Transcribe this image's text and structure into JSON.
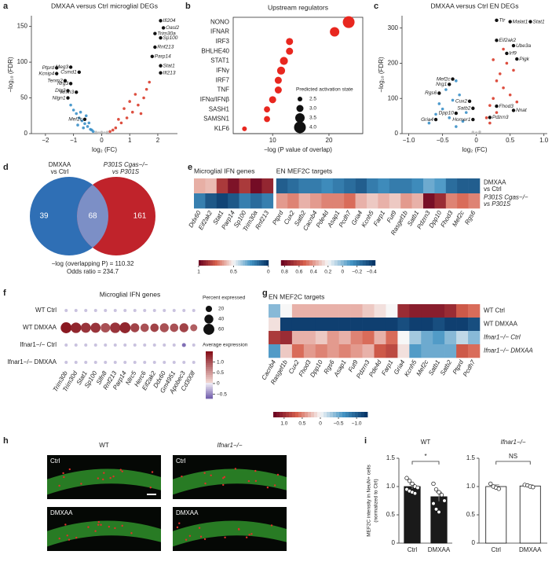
{
  "chart_data": [
    {
      "type": "volcano",
      "panel": "a",
      "title": "DMXAA versus Ctrl microglial DEGs",
      "xlabel": "log₂ (FC)",
      "ylabel": "−log₁₀ (FDR)",
      "xlim": [
        -2.5,
        2.7
      ],
      "xticks": [
        {
          "value": -2,
          "label": "−2"
        },
        {
          "value": -1,
          "label": "−1"
        },
        0,
        1,
        2
      ],
      "ylim": [
        0,
        165
      ],
      "yticks": [
        0,
        50,
        100,
        150
      ],
      "series": [
        {
          "color": "#2f8ac4",
          "x": [
            -0.3,
            -0.4,
            -0.5,
            -0.6,
            -0.7,
            -0.8,
            -0.9,
            -1.0,
            -0.55,
            -0.65,
            -0.75,
            -1.1,
            -0.45,
            -0.35,
            -0.85
          ],
          "y": [
            3,
            6,
            10,
            14,
            18,
            22,
            28,
            33,
            25,
            8,
            30,
            40,
            15,
            5,
            12
          ]
        },
        {
          "color": "#d7301f",
          "x": [
            0.3,
            0.5,
            0.7,
            0.9,
            1.1,
            1.3,
            1.5,
            0.6,
            0.8,
            1.0,
            1.2,
            1.6,
            0.4,
            1.4,
            1.7
          ],
          "y": [
            3,
            8,
            15,
            22,
            30,
            40,
            50,
            20,
            35,
            45,
            55,
            62,
            5,
            28,
            72
          ]
        },
        {
          "color": "#bbbbbb",
          "x": [
            -0.1,
            0.1,
            0,
            -0.2,
            0.2
          ],
          "y": [
            1,
            1,
            2,
            2,
            2
          ]
        }
      ],
      "genes": {
        "color": "#111111",
        "names": [
          "Ifi204",
          "Oasl2",
          "Trim30a",
          "Sp100",
          "Rnf213",
          "Parp14",
          "Stat1",
          "Ifi213",
          "Ptprd",
          "Meg3",
          "Kcnip4",
          "Csmd1",
          "Tenm2",
          "Nrg3",
          "Dlg2",
          "Nrxn3",
          "Nlgn1",
          "Mef2c"
        ],
        "x": [
          2.1,
          2.2,
          1.9,
          2.1,
          1.9,
          1.8,
          2.1,
          2.1,
          -1.6,
          -1.1,
          -1.6,
          -0.8,
          -1.3,
          -1.1,
          -1.2,
          -0.9,
          -1.2,
          -0.6
        ],
        "y": [
          158,
          148,
          140,
          134,
          121,
          108,
          95,
          85,
          92,
          93,
          84,
          86,
          74,
          70,
          60,
          58,
          50,
          20
        ]
      }
    },
    {
      "type": "dot",
      "panel": "b",
      "title": "Upstream regulators",
      "xlabel": "−log (P value of overlap)",
      "color": "#e8271f",
      "categories": [
        "NONO",
        "IFNAR",
        "IRF3",
        "BHLHE40",
        "STAT1",
        "IFNγ",
        "IRF7",
        "TNF",
        "IFNα/IFNβ",
        "SASH1",
        "SAMSN1",
        "KLF6"
      ],
      "values": [
        23.5,
        21,
        13,
        13,
        12,
        11.5,
        11,
        11,
        10,
        9,
        9,
        5
      ],
      "sizes": [
        4.0,
        3.5,
        3.0,
        3.0,
        3.2,
        3.2,
        3.0,
        3.0,
        3.0,
        2.8,
        2.8,
        2.5
      ],
      "xlim": [
        3,
        26
      ],
      "xticks": [
        10,
        20
      ],
      "legend": {
        "title": "Predicted activation state",
        "sizes": [
          2.5,
          {
            "value": 3.0,
            "label": "3.0"
          },
          3.5,
          {
            "value": 4.0,
            "label": "4.0"
          }
        ]
      }
    },
    {
      "type": "volcano",
      "panel": "c",
      "title": "DMXAA versus Ctrl EN DEGs",
      "xlabel": "log₂ (FC)",
      "ylabel": "−log₁₀ (FDR)",
      "xlim": [
        -1.1,
        1.05
      ],
      "xticks": [
        {
          "value": -1.0,
          "label": "−1.0"
        },
        {
          "value": -0.5,
          "label": "−0.5"
        },
        0,
        0.5,
        {
          "value": 1.0,
          "label": "1.0"
        }
      ],
      "ylim": [
        0,
        335
      ],
      "yticks": [
        0,
        100,
        200,
        300
      ],
      "series": [
        {
          "color": "#2f8ac4",
          "x": [
            -0.3,
            -0.4,
            -0.5,
            -0.35,
            -0.6,
            -0.25,
            -0.45,
            -0.2,
            -0.55,
            -0.15,
            -0.7,
            -0.3
          ],
          "y": [
            20,
            45,
            70,
            95,
            55,
            110,
            125,
            35,
            85,
            60,
            30,
            150
          ]
        },
        {
          "color": "#d7301f",
          "x": [
            0.2,
            0.3,
            0.25,
            0.4,
            0.35,
            0.45,
            0.2,
            0.5,
            0.3,
            0.6,
            0.15,
            0.4,
            0.55,
            0.25
          ],
          "y": [
            30,
            60,
            100,
            130,
            170,
            200,
            80,
            110,
            150,
            90,
            45,
            240,
            180,
            210
          ]
        },
        {
          "color": "#bbbbbb",
          "x": [
            0,
            0.05,
            -0.05
          ],
          "y": [
            2,
            5,
            4
          ]
        }
      ],
      "genes": {
        "color": "#111111",
        "names": [
          "Ttr",
          "Malat1",
          "Stat1",
          "Eif2ak2",
          "Ube3a",
          "Irf9",
          "Pigk",
          "Nrg1",
          "Mef2c",
          "Rgs6",
          "Cux2",
          "Satb2",
          "Dpp10",
          "Gria4",
          "Homer1",
          "Pdzrn3",
          "Fhod3",
          "Nnat"
        ],
        "x": [
          0.3,
          0.5,
          0.8,
          0.3,
          0.55,
          0.45,
          0.6,
          -0.4,
          -0.35,
          -0.55,
          -0.1,
          -0.05,
          -0.3,
          -0.6,
          -0.05,
          0.2,
          0.3,
          0.55
        ],
        "y": [
          322,
          318,
          318,
          265,
          250,
          228,
          212,
          140,
          155,
          115,
          92,
          72,
          58,
          40,
          40,
          46,
          78,
          66
        ]
      }
    },
    {
      "type": "venn",
      "panel": "d",
      "colors": [
        "#2f6fb5",
        "#c0232b",
        "#7c8fc6"
      ],
      "left_label": [
        "DMXAA",
        "vs Ctrl"
      ],
      "right_label": [
        "P301S Cgas−/−",
        "vs P301S"
      ],
      "counts": [
        39,
        68,
        161
      ],
      "stats": [
        "−log (overlapping P) = 110.32",
        "Odds ratio = 234.7"
      ]
    },
    {
      "type": "heatmap",
      "panel": "e",
      "rows": [
        [
          "DMXAA",
          "vs Ctrl"
        ],
        [
          "P301S Cgas−/−",
          "vs P301S"
        ]
      ],
      "groups": [
        {
          "title": "Microglial IFN genes",
          "columns": [
            "Ddx60",
            "Eif2ak2",
            "Stat1",
            "Parp14",
            "Sp100",
            "Trim30a",
            "Rnf213"
          ],
          "values": [
            [
              0.62,
              0.6,
              0.85,
              0.95,
              0.85,
              0.97,
              0.9
            ],
            [
              0.2,
              0.1,
              0.05,
              0.1,
              0.2,
              0.15,
              0.2
            ]
          ],
          "lim": [
            0,
            1
          ],
          "ticks": [
            1,
            0.5,
            0
          ]
        },
        {
          "title": "EN MEF2C targets",
          "columns": [
            "Ptprd",
            "Cux2",
            "Satb2",
            "Cacnb4",
            "Pde4d",
            "Asap1",
            "Pcdh7",
            "Gria4",
            "Kcnh5",
            "Farp1",
            "Fut9",
            "Rasgef1b",
            "Satb1",
            "Pdzrn3",
            "Dpp10",
            "Fhod3",
            "Mef2c",
            "Rgs6"
          ],
          "values": [
            [
              -0.3,
              -0.25,
              -0.2,
              -0.2,
              -0.15,
              -0.2,
              -0.25,
              -0.3,
              -0.2,
              -0.15,
              -0.2,
              -0.2,
              -0.15,
              -0.05,
              -0.1,
              -0.25,
              -0.3,
              -0.3
            ],
            [
              0.4,
              0.45,
              0.35,
              0.4,
              0.45,
              0.45,
              0.5,
              0.35,
              0.3,
              0.35,
              0.3,
              0.4,
              0.35,
              0.8,
              0.7,
              0.45,
              0.5,
              0.45
            ]
          ],
          "lim": [
            -0.45,
            0.85
          ],
          "ticks": [
            0.8,
            0.6,
            0.4,
            0.2,
            0,
            {
              "value": -0.2,
              "label": "−0.2"
            },
            {
              "value": -0.4,
              "label": "−0.4"
            }
          ]
        }
      ]
    },
    {
      "type": "dotplot",
      "panel": "f",
      "title": "Microglial IFN genes",
      "rows": [
        "WT Ctrl",
        "WT DMXAA",
        "Ifnar1−/− Ctrl",
        "Ifnar1−/− DMXAA"
      ],
      "columns": [
        "Trim30b",
        "Trim30d",
        "Stat1",
        "Sp100",
        "Slfn8",
        "Rnf213",
        "Parp14",
        "Nlrc5",
        "Herc6",
        "Eif2ak2",
        "Ddx60",
        "Gm4951",
        "Apobec3",
        "Cd300lf"
      ],
      "percent": [
        [
          5,
          5,
          5,
          5,
          5,
          5,
          5,
          5,
          5,
          5,
          5,
          5,
          5,
          5
        ],
        [
          60,
          55,
          50,
          50,
          45,
          55,
          60,
          40,
          35,
          35,
          40,
          35,
          40,
          25
        ],
        [
          5,
          5,
          5,
          5,
          5,
          5,
          5,
          5,
          5,
          5,
          5,
          5,
          8,
          5
        ],
        [
          5,
          5,
          5,
          5,
          5,
          5,
          5,
          5,
          5,
          5,
          5,
          5,
          5,
          5
        ]
      ],
      "expression": [
        [
          -0.2,
          -0.2,
          -0.2,
          -0.2,
          -0.2,
          -0.2,
          -0.2,
          -0.2,
          -0.2,
          -0.2,
          -0.2,
          -0.2,
          -0.2,
          -0.2
        ],
        [
          1.4,
          1.3,
          1.2,
          1.2,
          1.0,
          1.2,
          1.3,
          1.1,
          1.0,
          1.1,
          1.0,
          1.0,
          1.1,
          0.9
        ],
        [
          -0.2,
          -0.2,
          -0.2,
          -0.2,
          -0.2,
          -0.2,
          -0.2,
          -0.2,
          -0.2,
          -0.2,
          -0.2,
          -0.2,
          -0.6,
          -0.2
        ],
        [
          -0.2,
          -0.2,
          -0.2,
          -0.2,
          -0.2,
          -0.2,
          -0.2,
          -0.2,
          -0.2,
          -0.2,
          -0.2,
          -0.2,
          -0.2,
          -0.2
        ]
      ],
      "size_legend": {
        "title": "Percent expressed",
        "values": [
          20,
          40,
          60
        ]
      },
      "color_legend": {
        "title": "Average expression",
        "lim": [
          -0.7,
          1.5
        ],
        "ticks": [
          {
            "value": 1.0,
            "label": "1.0"
          },
          0.5,
          0,
          {
            "value": -0.5,
            "label": "−0.5"
          }
        ]
      }
    },
    {
      "type": "heatmap",
      "panel": "g",
      "rows": [
        [
          "WT Ctrl"
        ],
        [
          "WT DMXAA"
        ],
        [
          "Ifnar1−/− Ctrl"
        ],
        [
          "Ifnar1−/− DMXAA"
        ]
      ],
      "groups": [
        {
          "title": "EN MEF2C targets",
          "columns": [
            "Cacnb4",
            "Rasgef1b",
            "Cux2",
            "Fhod3",
            "Dpp10",
            "Rgs6",
            "Asap1",
            "Fut9",
            "Pdzrn3",
            "Pde4d",
            "Farp1",
            "Gria4",
            "Kcnh5",
            "Mef2c",
            "Satb1",
            "Satb2",
            "Ptprd",
            "Pcdh7"
          ],
          "values": [
            [
              -0.4,
              0,
              0.3,
              0.3,
              0.3,
              0.3,
              0.3,
              0.3,
              0.2,
              0.1,
              0,
              1.0,
              1.1,
              1.1,
              1.1,
              1.0,
              0.7,
              0.6
            ],
            [
              0.1,
              -1.2,
              -1.2,
              -1.2,
              -1.2,
              -1.2,
              -1.2,
              -1.2,
              -1.2,
              -1.2,
              -1.2,
              -1.1,
              -1.2,
              -1.2,
              -1.1,
              -1.2,
              -1.2,
              -1.1
            ],
            [
              0.9,
              1.0,
              0.3,
              0.3,
              0.2,
              0.4,
              0.3,
              0.5,
              0.6,
              0.3,
              0.6,
              0,
              -0.3,
              -0.5,
              -0.6,
              -0.4,
              -0.2,
              -0.4
            ],
            [
              -0.6,
              0.2,
              0.6,
              0.4,
              0.5,
              0.4,
              0.5,
              0.4,
              0.3,
              0.7,
              0.8,
              0.1,
              -0.6,
              -0.5,
              -0.5,
              -0.5,
              0.7,
              0.6
            ]
          ],
          "lim": [
            -1.3,
            1.3
          ],
          "ticks": [
            {
              "value": 1.0,
              "label": "1.0"
            },
            0.5,
            0,
            {
              "value": -0.5,
              "label": "−0.5"
            },
            {
              "value": -1.0,
              "label": "−1.0"
            }
          ]
        }
      ]
    },
    {
      "type": "image",
      "panel": "h",
      "columns": [
        "WT",
        "Ifnar1−/−"
      ],
      "tiles": [
        [
          "Ctrl",
          "DMXAA"
        ],
        [
          "Ctrl",
          "DMXAA"
        ]
      ]
    },
    {
      "type": "bar",
      "panel": "i",
      "title": "WT",
      "ylabel": [
        "MEF2C intensity in NeuN+ cells",
        "(normalized to Ctrl)"
      ],
      "categories": [
        "Ctrl",
        "DMXAA"
      ],
      "values": [
        1.0,
        0.82
      ],
      "errors": [
        0.04,
        0.08
      ],
      "color": "#1a1a1a",
      "points": [
        [
          1.15,
          1.1,
          1.05,
          1.0,
          0.98,
          0.95,
          0.92,
          0.9,
          0.88
        ],
        [
          1.05,
          0.95,
          0.9,
          0.85,
          0.75,
          0.7,
          0.6,
          0.55
        ]
      ],
      "annotation": "*",
      "ylim": [
        0,
        1.5
      ],
      "yticks": [
        0,
        0.5,
        {
          "value": 1.0,
          "label": "1.0"
        },
        1.5
      ]
    },
    {
      "type": "bar",
      "title": "Ifnar1−/−",
      "categories": [
        "Ctrl",
        "DMXAA"
      ],
      "values": [
        1.0,
        1.01
      ],
      "errors": [
        0.03,
        0.02
      ],
      "color": "#ffffff",
      "points": [
        [
          1.05,
          1.0,
          0.98,
          0.96
        ],
        [
          1.03,
          1.02,
          1.0,
          0.99
        ]
      ],
      "annotation": "NS",
      "ylim": [
        0,
        1.5
      ],
      "yticks": [
        0,
        0.5,
        {
          "value": 1.0,
          "label": "1.0"
        },
        1.5
      ]
    }
  ]
}
